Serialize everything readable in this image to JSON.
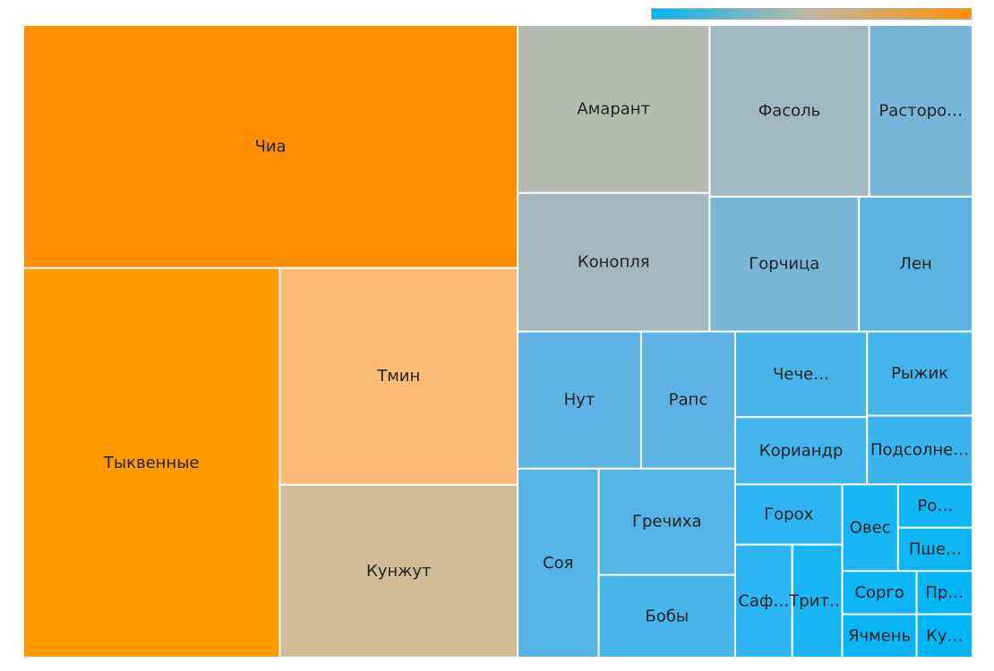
{
  "chart_data": {
    "type": "treemap",
    "title": "",
    "color_scale": {
      "low": "#00b5f5",
      "mid": "#c3b8a2",
      "high": "#ff8f00"
    },
    "items": [
      {
        "label": "Чиа",
        "display": "Чиа",
        "value": 149,
        "color": "#ff8f00"
      },
      {
        "label": "Тыквенные",
        "display": "Тыквенные",
        "value": 124,
        "color": "#ff9a00"
      },
      {
        "label": "Тмин",
        "display": "Тмин",
        "value": 64,
        "color": "#fbbb77"
      },
      {
        "label": "Кунжут",
        "display": "Кунжут",
        "value": 51,
        "color": "#d2bc98"
      },
      {
        "label": "Амарант",
        "display": "Амарант",
        "value": 40,
        "color": "#b4bcb1"
      },
      {
        "label": "Конопля",
        "display": "Конопля",
        "value": 33,
        "color": "#a2b8bc"
      },
      {
        "label": "Фасоль",
        "display": "Фасоль",
        "value": 34,
        "color": "#9fb8c2"
      },
      {
        "label": "Расторопша",
        "display": "Расторо…",
        "value": 22,
        "color": "#78b6d8"
      },
      {
        "label": "Горчица",
        "display": "Горчица",
        "value": 25,
        "color": "#78b6d8"
      },
      {
        "label": "Лен",
        "display": "Лен",
        "value": 19,
        "color": "#5cb2e2"
      },
      {
        "label": "Нут",
        "display": "Нут",
        "value": 21,
        "color": "#5cb3e3"
      },
      {
        "label": "Рапс",
        "display": "Рапс",
        "value": 16,
        "color": "#5cb2e2"
      },
      {
        "label": "Соя",
        "display": "Соя",
        "value": 19,
        "color": "#55b3e6"
      },
      {
        "label": "Гречиха",
        "display": "Гречиха",
        "value": 18,
        "color": "#55b3e6"
      },
      {
        "label": "Бобы",
        "display": "Бобы",
        "value": 14,
        "color": "#49b4ea"
      },
      {
        "label": "Чечевица",
        "display": "Чече…",
        "value": 14,
        "color": "#49b4ea"
      },
      {
        "label": "Кориандр",
        "display": "Кориандр",
        "value": 11,
        "color": "#44b4ec"
      },
      {
        "label": "Рыжик",
        "display": "Рыжик",
        "value": 11,
        "color": "#44b4ec"
      },
      {
        "label": "Подсолнечник",
        "display": "Подсолне…",
        "value": 9,
        "color": "#3bb4ee"
      },
      {
        "label": "Горох",
        "display": "Горох",
        "value": 8,
        "color": "#2cb5f2"
      },
      {
        "label": "Сафлор",
        "display": "Саф…",
        "value": 8,
        "color": "#2cb5f2"
      },
      {
        "label": "Тритикале",
        "display": "Трит…",
        "value": 7,
        "color": "#19b5f4"
      },
      {
        "label": "Овес",
        "display": "Овес",
        "value": 6,
        "color": "#19b5f4"
      },
      {
        "label": "Рожь",
        "display": "Ро…",
        "value": 4,
        "color": "#10b5f5"
      },
      {
        "label": "Пшеница",
        "display": "Пше…",
        "value": 4,
        "color": "#0eb5f5"
      },
      {
        "label": "Сорго",
        "display": "Сорго",
        "value": 4,
        "color": "#0eb5f5"
      },
      {
        "label": "Ячмень",
        "display": "Ячмень",
        "value": 4,
        "color": "#0bb5f5"
      },
      {
        "label": "Просо",
        "display": "Пр…",
        "value": 3,
        "color": "#00b5f5"
      },
      {
        "label": "Кукуруза",
        "display": "Ку…",
        "value": 3,
        "color": "#00b5f5"
      }
    ]
  }
}
